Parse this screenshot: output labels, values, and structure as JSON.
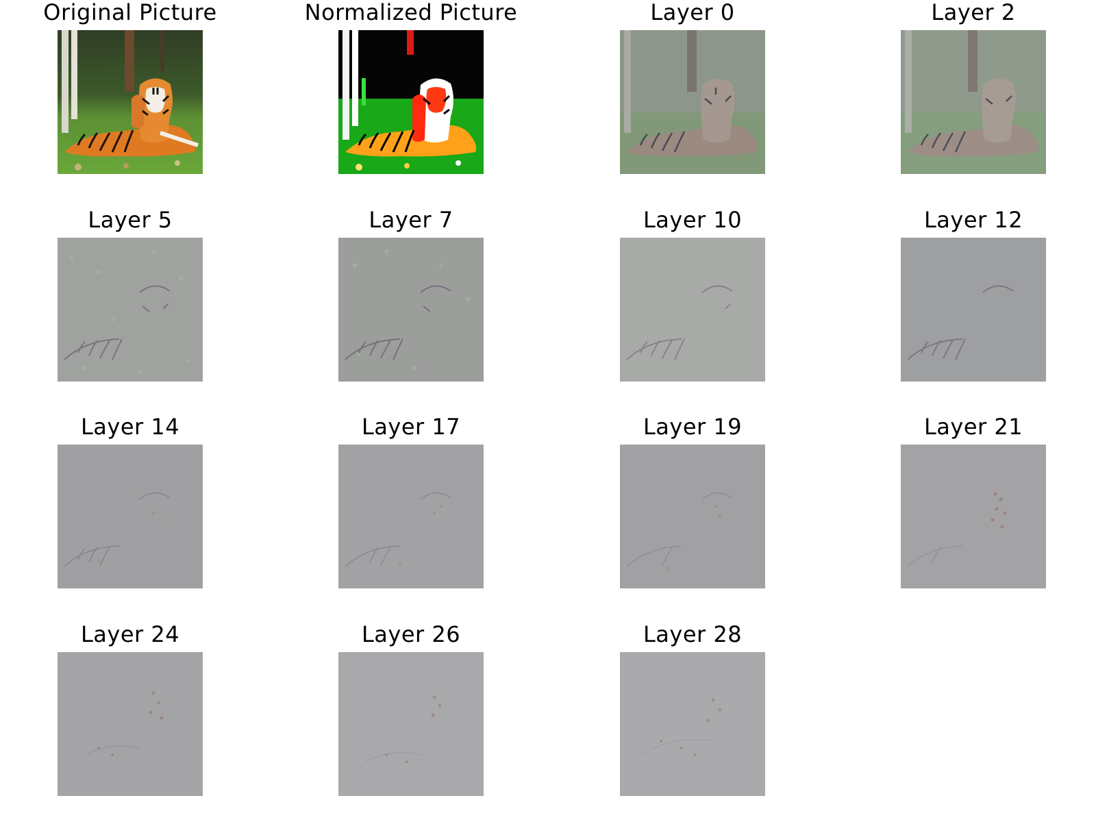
{
  "figure": {
    "panels": [
      {
        "title": "Original Picture",
        "kind": "original"
      },
      {
        "title": "Normalized Picture",
        "kind": "normalized"
      },
      {
        "title": "Layer 0",
        "kind": "layer",
        "layer": 0
      },
      {
        "title": "Layer 2",
        "kind": "layer",
        "layer": 2
      },
      {
        "title": "Layer 5",
        "kind": "layer",
        "layer": 5
      },
      {
        "title": "Layer 7",
        "kind": "layer",
        "layer": 7
      },
      {
        "title": "Layer 10",
        "kind": "layer",
        "layer": 10
      },
      {
        "title": "Layer 12",
        "kind": "layer",
        "layer": 12
      },
      {
        "title": "Layer 14",
        "kind": "layer",
        "layer": 14
      },
      {
        "title": "Layer 17",
        "kind": "layer",
        "layer": 17
      },
      {
        "title": "Layer 19",
        "kind": "layer",
        "layer": 19
      },
      {
        "title": "Layer 21",
        "kind": "layer",
        "layer": 21
      },
      {
        "title": "Layer 24",
        "kind": "layer",
        "layer": 24
      },
      {
        "title": "Layer 26",
        "kind": "layer",
        "layer": 26
      },
      {
        "title": "Layer 28",
        "kind": "layer",
        "layer": 28
      }
    ]
  },
  "colors": {
    "background": "#ffffff",
    "title_text": "#000000",
    "grass": "#4f9a2e",
    "forest": "#2c3a22",
    "tiger_orange": "#e07a22",
    "tiger_stripe": "#1a1410",
    "tiger_white": "#f3efe6",
    "map_gray": "#a2a2a4"
  }
}
